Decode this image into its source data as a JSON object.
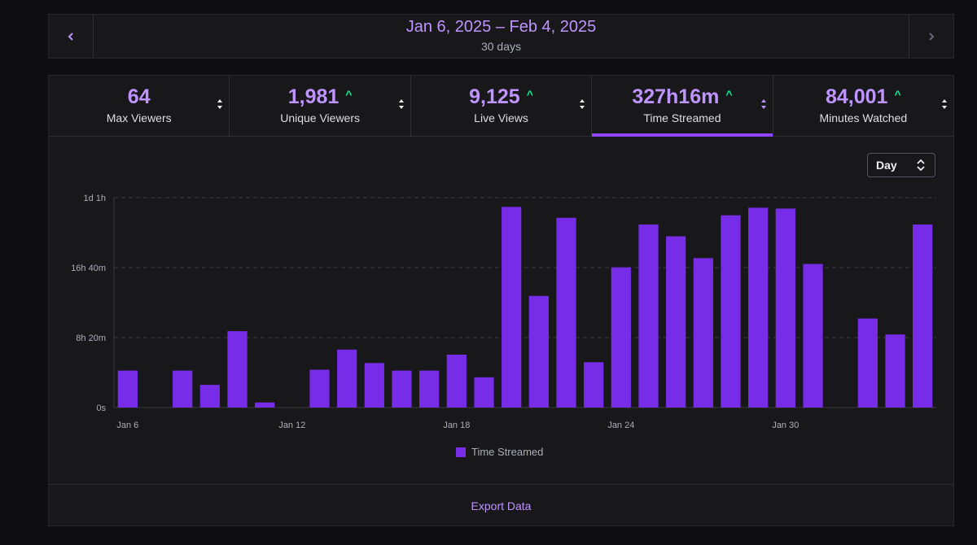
{
  "date_range": {
    "label": "Jan 6, 2025 – Feb 4, 2025",
    "sub": "30 days"
  },
  "icons": {
    "prev": "chevron-left-icon",
    "next": "chevron-right-icon",
    "sort": "sort-arrows-icon",
    "trend": "trend-up-icon"
  },
  "stats": [
    {
      "value": "64",
      "label": "Max Viewers",
      "trend": ""
    },
    {
      "value": "1,981",
      "label": "Unique Viewers",
      "trend": "^"
    },
    {
      "value": "9,125",
      "label": "Live Views",
      "trend": "^"
    },
    {
      "value": "327h16m",
      "label": "Time Streamed",
      "trend": "^",
      "active": true
    },
    {
      "value": "84,001",
      "label": "Minutes Watched",
      "trend": "^"
    }
  ],
  "interval_select": {
    "value": "Day"
  },
  "colors": {
    "accent": "#bf94ff",
    "bar": "#772ce8",
    "active_tab": "#9147ff",
    "trend_up": "#00f593"
  },
  "chart_data": {
    "type": "bar",
    "categories": [
      "Jan 6",
      "Jan 7",
      "Jan 8",
      "Jan 9",
      "Jan 10",
      "Jan 11",
      "Jan 12",
      "Jan 13",
      "Jan 14",
      "Jan 15",
      "Jan 16",
      "Jan 17",
      "Jan 18",
      "Jan 19",
      "Jan 20",
      "Jan 21",
      "Jan 22",
      "Jan 23",
      "Jan 24",
      "Jan 25",
      "Jan 26",
      "Jan 27",
      "Jan 28",
      "Jan 29",
      "Jan 30",
      "Jan 31",
      "Feb 1",
      "Feb 2",
      "Feb 3",
      "Feb 4"
    ],
    "x_tick_labels": [
      "Jan 6",
      "Jan 12",
      "Jan 18",
      "Jan 24",
      "Jan 30"
    ],
    "x_tick_indices": [
      0,
      6,
      12,
      18,
      24
    ],
    "series": [
      {
        "name": "Time Streamed",
        "values_hours": [
          4.4,
          0,
          4.4,
          2.7,
          9.1,
          0.6,
          0,
          4.5,
          6.9,
          5.3,
          4.4,
          4.4,
          6.3,
          3.6,
          23.9,
          13.3,
          22.6,
          5.4,
          16.7,
          21.8,
          20.4,
          17.8,
          22.9,
          23.8,
          23.7,
          17.1,
          0,
          10.6,
          8.7,
          21.8
        ]
      }
    ],
    "y_ticks": [
      {
        "value": 0,
        "label": "0s"
      },
      {
        "value": 8.3333,
        "label": "8h 20m"
      },
      {
        "value": 16.6667,
        "label": "16h 40m"
      },
      {
        "value": 25,
        "label": "1d 1h"
      }
    ],
    "ylim": [
      0,
      25
    ],
    "grid": true,
    "legend": "bottom"
  },
  "export_label": "Export Data"
}
